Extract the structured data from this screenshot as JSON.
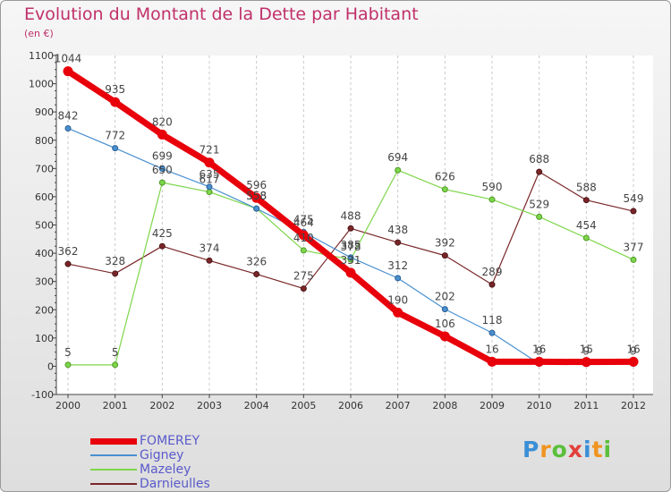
{
  "title": "Evolution du Montant de la Dette par Habitant",
  "unit": "(en €)",
  "logo": {
    "letters": [
      "P",
      "r",
      "o",
      "x",
      "i",
      "t",
      "i"
    ],
    "colors": [
      "#3b8fd6",
      "#f0941f",
      "#5abf3a",
      "#e2403b",
      "#3b8fd6",
      "#f0941f",
      "#5abf3a"
    ]
  },
  "chart_data": {
    "type": "line",
    "title": "Evolution du Montant de la Dette par Habitant",
    "ylabel": "(en €)",
    "xlabel": "",
    "x": [
      "2000",
      "2001",
      "2002",
      "2003",
      "2004",
      "2005",
      "2006",
      "2007",
      "2008",
      "2009",
      "2010",
      "2011",
      "2012"
    ],
    "ylim": [
      -100,
      1100
    ],
    "yticks": [
      "-100",
      "0",
      "100",
      "200",
      "300",
      "400",
      "500",
      "600",
      "700",
      "800",
      "900",
      "1000",
      "1100"
    ],
    "grid": "vertical dashed",
    "legend_position": "bottom-left",
    "series": [
      {
        "name": "FOMEREY",
        "color": "#e8000b",
        "values": [
          1044,
          935,
          820,
          721,
          596,
          464,
          331,
          190,
          106,
          16,
          16,
          15,
          16
        ]
      },
      {
        "name": "Gigney",
        "color": "#4a90d0",
        "values": [
          842,
          772,
          699,
          635,
          558,
          475,
          385,
          312,
          202,
          118,
          9,
          9,
          9
        ]
      },
      {
        "name": "Mazeley",
        "color": "#7ed64a",
        "values": [
          5,
          5,
          650,
          617,
          558,
          410,
          378,
          694,
          626,
          590,
          529,
          454,
          377
        ]
      },
      {
        "name": "Darnieulles",
        "color": "#7a2628",
        "values": [
          362,
          328,
          425,
          374,
          326,
          275,
          488,
          438,
          392,
          289,
          688,
          588,
          549
        ]
      }
    ],
    "data_labels": {
      "FOMEREY": [
        "1044",
        "935",
        "820",
        "721",
        "596",
        "464",
        "331",
        "190",
        "106",
        "16",
        "16",
        "15",
        "16"
      ],
      "Gigney": [
        "842",
        "772",
        "699",
        "635",
        "558",
        "475",
        "385",
        "312",
        "202",
        "118",
        "9",
        "9",
        "9"
      ],
      "Mazeley": [
        "5",
        "5",
        "650",
        "617",
        "558",
        "410",
        "378",
        "694",
        "626",
        "590",
        "529",
        "454",
        "377"
      ],
      "Darnieulles": [
        "362",
        "328",
        "425",
        "374",
        "326",
        "275",
        "488",
        "438",
        "392",
        "289",
        "688",
        "588",
        "549"
      ]
    }
  }
}
